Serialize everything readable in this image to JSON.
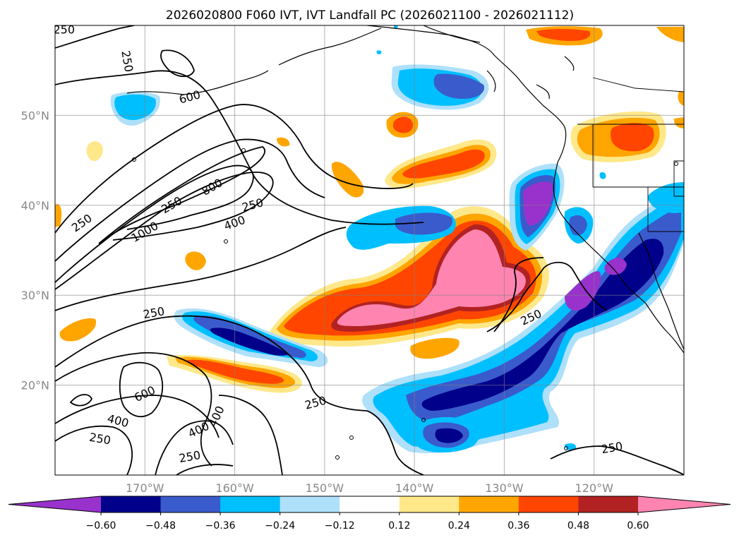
{
  "chart_data": {
    "type": "contour-map",
    "title": "2026020800 F060 IVT, IVT Landfall PC (2026021100 - 2026021112)",
    "map": {
      "projection": "PlateCarree",
      "lon_range": [
        -180,
        -110
      ],
      "lat_range": [
        10,
        60
      ],
      "x_ticks": [
        {
          "value": -170,
          "label": "170°W"
        },
        {
          "value": -160,
          "label": "160°W"
        },
        {
          "value": -150,
          "label": "150°W"
        },
        {
          "value": -140,
          "label": "140°W"
        },
        {
          "value": -130,
          "label": "130°W"
        },
        {
          "value": -120,
          "label": "120°W"
        }
      ],
      "y_ticks": [
        {
          "value": 20,
          "label": "20°N"
        },
        {
          "value": 30,
          "label": "30°N"
        },
        {
          "value": 40,
          "label": "40°N"
        },
        {
          "value": 50,
          "label": "50°N"
        }
      ],
      "grid": true
    },
    "filled_field": {
      "name": "IVT Landfall PC",
      "levels": [
        -0.72,
        -0.6,
        -0.48,
        -0.36,
        -0.24,
        -0.12,
        0.12,
        0.24,
        0.36,
        0.48,
        0.6,
        0.72
      ],
      "colors": [
        "#9932cc",
        "#00008b",
        "#3a5bcc",
        "#00bfff",
        "#aee0fa",
        "#ffffff",
        "#ffe88a",
        "#ffa500",
        "#ff4500",
        "#b22222",
        "#ff85b0"
      ],
      "extend": "both",
      "regions": [
        {
          "label": "strong positive pink core",
          "lon": -133.5,
          "lat": 34.5,
          "value": 0.66
        },
        {
          "label": "positive plume west",
          "lon": -147,
          "lat": 28,
          "value": 0.62
        },
        {
          "label": "positive plume north of Hawaii",
          "lon": -161,
          "lat": 22,
          "value": 0.4
        },
        {
          "label": "positive Gulf of Alaska band",
          "lon": -138,
          "lat": 42.5,
          "value": 0.4
        },
        {
          "label": "positive interior NW US",
          "lon": -119,
          "lat": 47.5,
          "value": 0.4
        },
        {
          "label": "positive far north",
          "lon": -123,
          "lat": 59,
          "value": 0.36
        },
        {
          "label": "negative SW US to subtropics",
          "lon": -125,
          "lat": 24,
          "value": -0.56
        },
        {
          "label": "negative subtropical band",
          "lon": -158,
          "lat": 25,
          "value": -0.5
        },
        {
          "label": "negative California coast",
          "lon": -124,
          "lat": 39,
          "value": -0.62
        },
        {
          "label": "negative Gulf of Alaska",
          "lon": -138,
          "lat": 53,
          "value": -0.4
        },
        {
          "label": "negative Bering area",
          "lon": -170,
          "lat": 51,
          "value": -0.3
        },
        {
          "label": "negative south",
          "lon": -137,
          "lat": 15,
          "value": -0.4
        }
      ]
    },
    "contours": {
      "name": "IVT",
      "levels": [
        250,
        400,
        600,
        800,
        1000
      ],
      "labels": [
        {
          "text": "250",
          "lon": -179,
          "lat": 59.5
        },
        {
          "text": "250",
          "lon": -172,
          "lat": 56
        },
        {
          "text": "600",
          "lon": -165,
          "lat": 52
        },
        {
          "text": "250",
          "lon": -167,
          "lat": 40
        },
        {
          "text": "250",
          "lon": -177,
          "lat": 38
        },
        {
          "text": "800",
          "lon": -162.5,
          "lat": 42
        },
        {
          "text": "1000",
          "lon": -170,
          "lat": 37
        },
        {
          "text": "400",
          "lon": -160,
          "lat": 38
        },
        {
          "text": "250",
          "lon": -158,
          "lat": 40
        },
        {
          "text": "250",
          "lon": -169,
          "lat": 28
        },
        {
          "text": "600",
          "lon": -170,
          "lat": 19
        },
        {
          "text": "400",
          "lon": -173,
          "lat": 16
        },
        {
          "text": "250",
          "lon": -175,
          "lat": 14
        },
        {
          "text": "400",
          "lon": -164,
          "lat": 15
        },
        {
          "text": "400",
          "lon": -162,
          "lat": 16.5
        },
        {
          "text": "250",
          "lon": -165,
          "lat": 12
        },
        {
          "text": "250",
          "lon": -151,
          "lat": 18
        },
        {
          "text": "250",
          "lon": -127,
          "lat": 27.5
        },
        {
          "text": "250",
          "lon": -118,
          "lat": 13
        }
      ]
    },
    "colorbar": {
      "orientation": "horizontal",
      "tick_labels": [
        "-0.60",
        "-0.48",
        "-0.36",
        "-0.24",
        "-0.12",
        "0.12",
        "0.24",
        "0.36",
        "0.48",
        "0.60"
      ]
    }
  }
}
